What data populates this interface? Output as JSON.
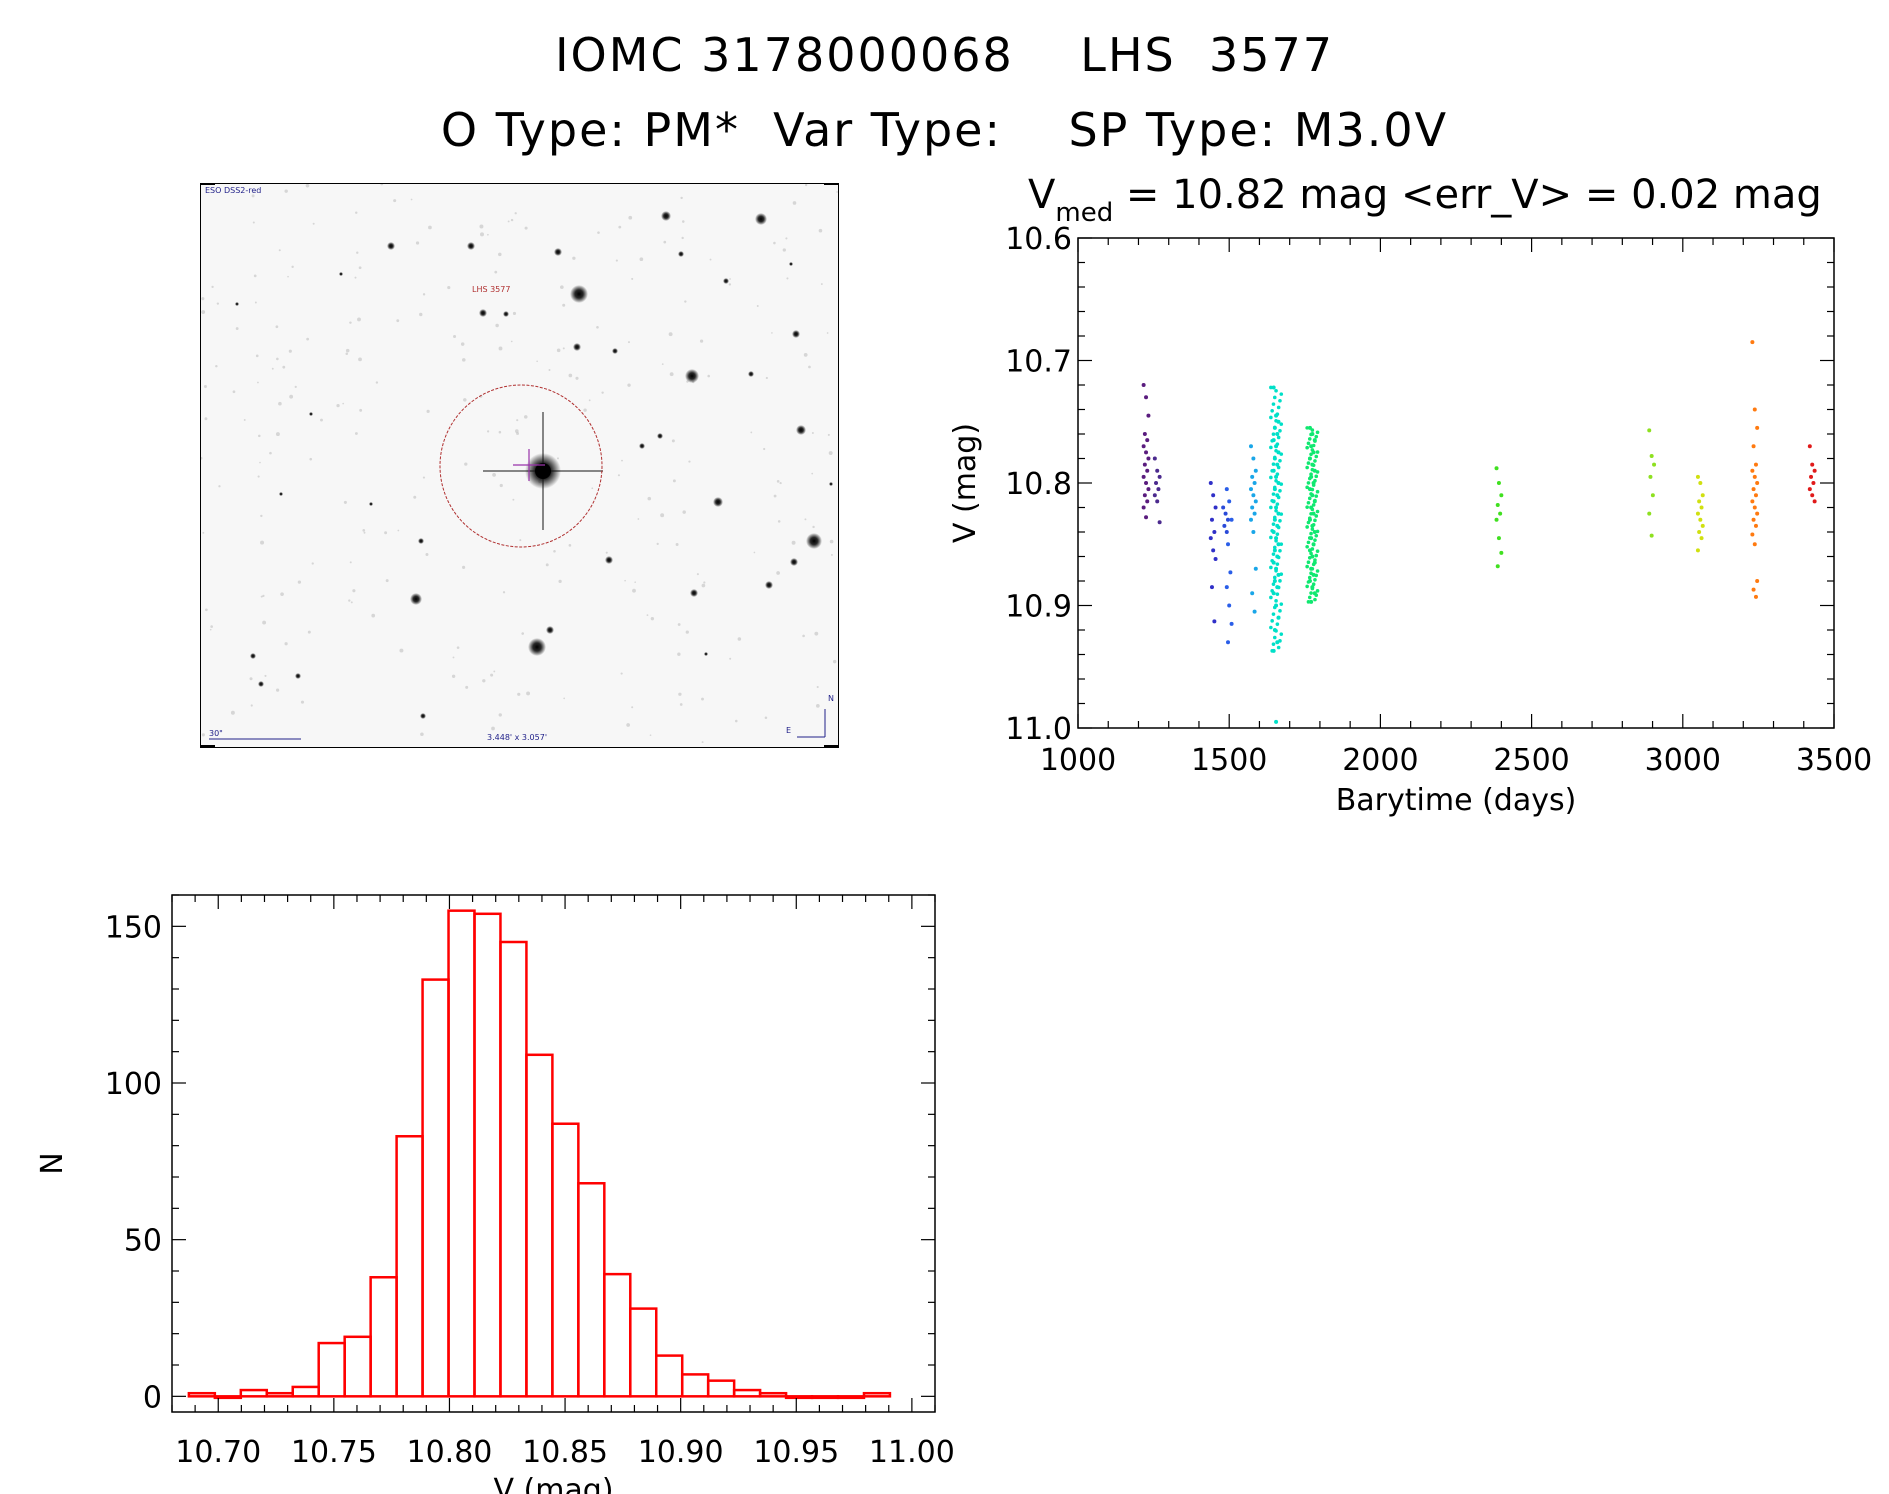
{
  "title": {
    "line1": "IOMC 3178000068    LHS  3577",
    "line2": "O Type: PM*  Var Type:    SP Type: M3.0V"
  },
  "finding_chart": {
    "survey_label": "ESO DSS2-red",
    "target_label": "LHS 3577",
    "scale_label": "30\"",
    "fov_label": "3.448' x 3.057'",
    "north_label": "N",
    "east_label": "E"
  },
  "colors": {
    "hist_bar": "#ff0000",
    "axis": "#000000",
    "circle": "#b03030",
    "crosshair": "#9933aa"
  },
  "chart_data": [
    {
      "type": "scatter",
      "name": "lightcurve",
      "title_parts": {
        "prefix": "V",
        "sub": "med",
        "rest": " = 10.82 mag <err_V> = 0.02 mag"
      },
      "xlabel": "Barytime (days)",
      "ylabel": "V (mag)",
      "xlim": [
        1000,
        3500
      ],
      "ylim": [
        10.6,
        11.0
      ],
      "y_inverted": true,
      "xticks": [
        1000,
        1500,
        2000,
        2500,
        3000,
        3500
      ],
      "yticks": [
        10.6,
        10.7,
        10.8,
        10.9,
        11.0
      ],
      "ytick_labels": [
        "10.6",
        "10.7",
        "10.8",
        "10.9",
        "11.0"
      ],
      "groups": [
        {
          "x": 1225,
          "color": "#5a1c7e",
          "values": [
            10.72,
            10.73,
            10.745,
            10.76,
            10.765,
            10.77,
            10.775,
            10.78,
            10.785,
            10.79,
            10.795,
            10.8,
            10.805,
            10.81,
            10.815,
            10.82,
            10.828
          ]
        },
        {
          "x": 1262,
          "color": "#4b2a8e",
          "values": [
            10.78,
            10.79,
            10.795,
            10.8,
            10.805,
            10.81,
            10.815,
            10.832
          ]
        },
        {
          "x": 1447,
          "color": "#3030c8",
          "values": [
            10.8,
            10.81,
            10.82,
            10.83,
            10.84,
            10.845,
            10.855,
            10.862,
            10.885,
            10.913
          ]
        },
        {
          "x": 1488,
          "color": "#2a4ad8",
          "values": [
            10.82,
            10.825,
            10.83,
            10.835,
            10.84
          ]
        },
        {
          "x": 1500,
          "color": "#2a5ee8",
          "values": [
            10.805,
            10.815,
            10.83,
            10.85,
            10.873,
            10.885,
            10.9,
            10.915,
            10.93
          ]
        },
        {
          "x": 1580,
          "color": "#1aa6e8",
          "values": [
            10.77,
            10.78,
            10.79,
            10.795,
            10.8,
            10.805,
            10.81,
            10.815,
            10.82,
            10.825,
            10.83,
            10.84,
            10.87,
            10.89,
            10.905
          ]
        },
        {
          "x": 1655,
          "color": "#00e0c8",
          "values": [
            10.722,
            10.745,
            10.75,
            10.755,
            10.76,
            10.765,
            10.77,
            10.775,
            10.78,
            10.785,
            10.79,
            10.795,
            10.8,
            10.805,
            10.81,
            10.815,
            10.82,
            10.825,
            10.83,
            10.835,
            10.84,
            10.845,
            10.85,
            10.855,
            10.86,
            10.865,
            10.87,
            10.875,
            10.88,
            10.885,
            10.89,
            10.9,
            10.91,
            10.92,
            10.93,
            10.937,
            10.995
          ]
        },
        {
          "x": 1775,
          "color": "#10e870",
          "values": [
            10.755,
            10.76,
            10.765,
            10.77,
            10.775,
            10.78,
            10.785,
            10.79,
            10.795,
            10.8,
            10.805,
            10.81,
            10.815,
            10.82,
            10.825,
            10.83,
            10.835,
            10.84,
            10.845,
            10.85,
            10.855,
            10.86,
            10.865,
            10.87,
            10.875,
            10.88,
            10.885,
            10.89,
            10.897
          ]
        },
        {
          "x": 2392,
          "color": "#40e020",
          "values": [
            10.788,
            10.8,
            10.81,
            10.818,
            10.825,
            10.83,
            10.845,
            10.857,
            10.868
          ]
        },
        {
          "x": 2897,
          "color": "#8ee020",
          "values": [
            10.757,
            10.778,
            10.785,
            10.795,
            10.81,
            10.825,
            10.843
          ]
        },
        {
          "x": 3058,
          "color": "#d0e010",
          "values": [
            10.795,
            10.8,
            10.81,
            10.815,
            10.82,
            10.825,
            10.83,
            10.835,
            10.84,
            10.845,
            10.855
          ]
        },
        {
          "x": 3238,
          "color": "#ff7a10",
          "values": [
            10.685,
            10.74,
            10.755,
            10.77,
            10.785,
            10.79,
            10.795,
            10.8,
            10.805,
            10.81,
            10.815,
            10.82,
            10.825,
            10.83,
            10.835,
            10.842,
            10.85,
            10.88,
            10.887,
            10.893
          ]
        },
        {
          "x": 3428,
          "color": "#e01a1a",
          "values": [
            10.77,
            10.785,
            10.79,
            10.795,
            10.8,
            10.805,
            10.81,
            10.815
          ]
        }
      ]
    },
    {
      "type": "bar",
      "name": "histogram",
      "xlabel": "V (mag)",
      "ylabel": "N",
      "xlim": [
        10.68,
        11.01
      ],
      "ylim": [
        -5,
        160
      ],
      "xticks": [
        10.7,
        10.75,
        10.8,
        10.85,
        10.9,
        10.95,
        11.0
      ],
      "xtick_labels": [
        "10.70",
        "10.75",
        "10.80",
        "10.85",
        "10.90",
        "10.95",
        "11.00"
      ],
      "yticks": [
        0,
        50,
        100,
        150
      ],
      "ytick_labels": [
        "0",
        "50",
        "100",
        "150"
      ],
      "bin_width": 0.01123,
      "bin_start": 10.6873,
      "values": [
        1,
        0,
        2,
        1,
        3,
        17,
        19,
        38,
        83,
        133,
        155,
        154,
        145,
        109,
        87,
        68,
        39,
        28,
        13,
        7,
        5,
        2,
        1,
        0,
        0,
        0,
        1
      ]
    }
  ]
}
